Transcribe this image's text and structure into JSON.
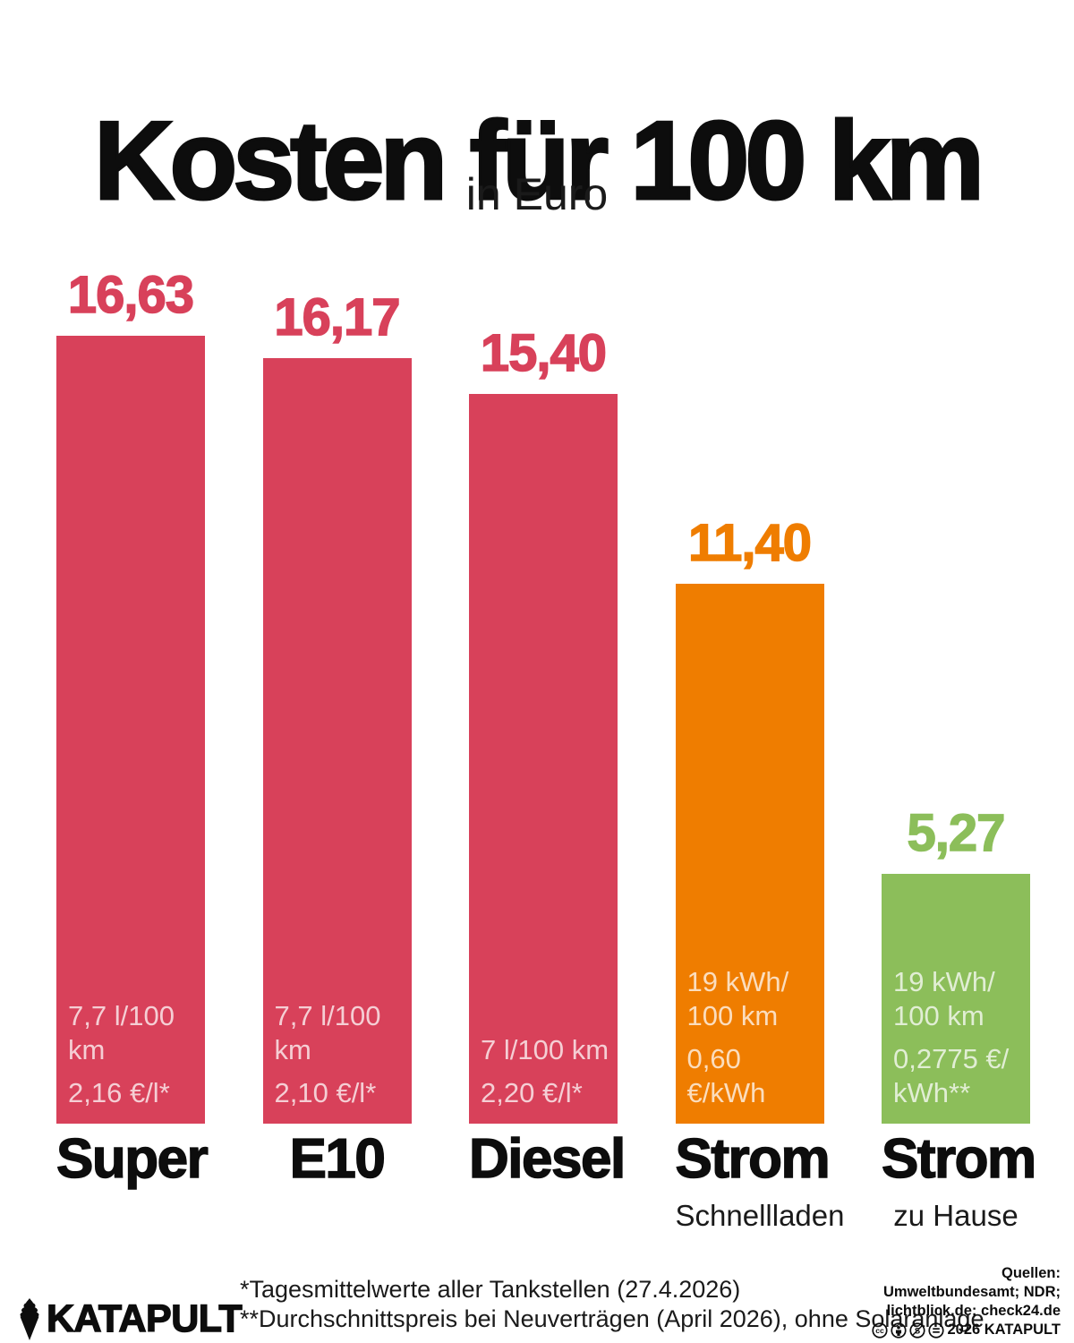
{
  "header": {
    "title": "Kosten für 100 km",
    "subtitle": "in Euro"
  },
  "chart_data": {
    "type": "bar",
    "title": "Kosten für 100 km",
    "unit_label": "in Euro",
    "ylim": [
      0,
      18
    ],
    "grid": false,
    "legend": "none",
    "categories": [
      "Super",
      "E10",
      "Diesel",
      "Strom (Schnellladen)",
      "Strom (zu Hause)"
    ],
    "values": [
      16.63,
      16.17,
      15.4,
      11.4,
      5.27
    ],
    "bars": [
      {
        "category": "Super",
        "sublabel": "",
        "value": 16.63,
        "value_label": "16,63",
        "color": "#d8415a",
        "consumption_lines": [
          "7,7 l/100 km"
        ],
        "price_lines": [
          "2,16 €/l*"
        ]
      },
      {
        "category": "E10",
        "sublabel": "",
        "value": 16.17,
        "value_label": "16,17",
        "color": "#d8415a",
        "consumption_lines": [
          "7,7 l/100 km"
        ],
        "price_lines": [
          "2,10 €/l*"
        ]
      },
      {
        "category": "Diesel",
        "sublabel": "",
        "value": 15.4,
        "value_label": "15,40",
        "color": "#d8415a",
        "consumption_lines": [
          "7 l/100 km"
        ],
        "price_lines": [
          "2,20 €/l*"
        ]
      },
      {
        "category": "Strom",
        "sublabel": "Schnellladen",
        "value": 11.4,
        "value_label": "11,40",
        "color": "#ef7d00",
        "consumption_lines": [
          "19 kWh/",
          "100 km"
        ],
        "price_lines": [
          "0,60 €/kWh"
        ]
      },
      {
        "category": "Strom",
        "sublabel": "zu Hause",
        "value": 5.27,
        "value_label": "5,27",
        "color": "#8cbe5a",
        "consumption_lines": [
          "19 kWh/",
          "100 km"
        ],
        "price_lines": [
          "0,2775 €/",
          "kWh**"
        ]
      }
    ]
  },
  "footer": {
    "logo_text": "KATAPULT",
    "footnote1": "*Tagesmittelwerte aller Tankstellen (27.4.2026)",
    "footnote2": "**Durchschnittspreis bei Neuverträgen (April 2026), ohne Solaranlage",
    "sources_label": "Quellen:",
    "sources_line1": "Umweltbundesamt; NDR;",
    "sources_line2": "lichtblick.de; check24.de",
    "license_line": "2026 KATAPULT",
    "license_icons": [
      "cc",
      "by",
      "nc",
      "nd"
    ]
  },
  "colors": {
    "fuel_pink": "#d8415a",
    "fast_charge_orange": "#ef7d00",
    "home_charge_green": "#8cbe5a",
    "text_black": "#0d0d0d",
    "background": "#ffffff",
    "bar_annotation_text": "rgba(255,255,255,0.74)"
  }
}
